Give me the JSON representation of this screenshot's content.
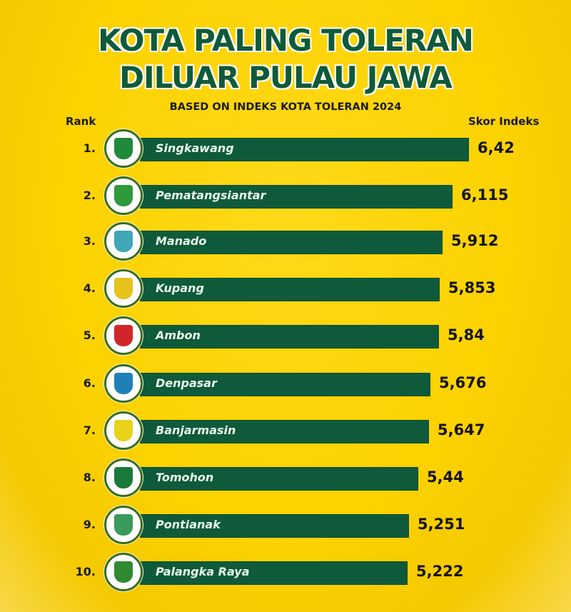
{
  "title_line1": "KOTA PALING TOLERAN",
  "title_line2": "DILUAR PULAU JAWA",
  "subtitle": "BASED ON INDEKS KOTA TOLERAN 2024",
  "header": {
    "rank": "Rank",
    "score": "Skor Indeks"
  },
  "colors": {
    "background": "#fcd200",
    "bar": "#0f5a3a",
    "title": "#0f5a3a",
    "text": "#141414"
  },
  "rows": [
    {
      "rank": "1.",
      "city": "Singkawang",
      "score": "6,42",
      "bar_end": 657,
      "emblem_color": "#1f8a3a",
      "icon": "singkawang-emblem-icon"
    },
    {
      "rank": "2.",
      "city": "Pematangsiantar",
      "score": "6,115",
      "bar_end": 634,
      "emblem_color": "#2e9a3a",
      "icon": "pematangsiantar-emblem-icon"
    },
    {
      "rank": "3.",
      "city": "Manado",
      "score": "5,912",
      "bar_end": 620,
      "emblem_color": "#3fa7b8",
      "icon": "manado-emblem-icon"
    },
    {
      "rank": "4.",
      "city": "Kupang",
      "score": "5,853",
      "bar_end": 616,
      "emblem_color": "#e6c21a",
      "icon": "kupang-emblem-icon"
    },
    {
      "rank": "5.",
      "city": "Ambon",
      "score": "5,84",
      "bar_end": 615,
      "emblem_color": "#d0262b",
      "icon": "ambon-emblem-icon"
    },
    {
      "rank": "6.",
      "city": "Denpasar",
      "score": "5,676",
      "bar_end": 603,
      "emblem_color": "#1f7fb8",
      "icon": "denpasar-emblem-icon"
    },
    {
      "rank": "7.",
      "city": "Banjarmasin",
      "score": "5,647",
      "bar_end": 601,
      "emblem_color": "#e8d21a",
      "icon": "banjarmasin-emblem-icon"
    },
    {
      "rank": "8.",
      "city": "Tomohon",
      "score": "5,44",
      "bar_end": 586,
      "emblem_color": "#1a7a3a",
      "icon": "tomohon-emblem-icon"
    },
    {
      "rank": "9.",
      "city": "Pontianak",
      "score": "5,251",
      "bar_end": 573,
      "emblem_color": "#3a9a5a",
      "icon": "pontianak-emblem-icon"
    },
    {
      "rank": "10.",
      "city": "Palangka Raya",
      "score": "5,222",
      "bar_end": 571,
      "emblem_color": "#2f8a2f",
      "icon": "palangka-raya-emblem-icon"
    }
  ],
  "chart_data": {
    "type": "bar",
    "orientation": "horizontal",
    "title": "KOTA PALING TOLERAN DILUAR PULAU JAWA",
    "subtitle": "BASED ON INDEKS KOTA TOLERAN 2024",
    "xlabel": "Skor Indeks",
    "ylabel": "Rank",
    "categories": [
      "Singkawang",
      "Pematangsiantar",
      "Manado",
      "Kupang",
      "Ambon",
      "Denpasar",
      "Banjarmasin",
      "Tomohon",
      "Pontianak",
      "Palangka Raya"
    ],
    "values": [
      6.42,
      6.115,
      5.912,
      5.853,
      5.84,
      5.676,
      5.647,
      5.44,
      5.251,
      5.222
    ],
    "ranks": [
      1,
      2,
      3,
      4,
      5,
      6,
      7,
      8,
      9,
      10
    ],
    "grid": false,
    "legend": null
  }
}
